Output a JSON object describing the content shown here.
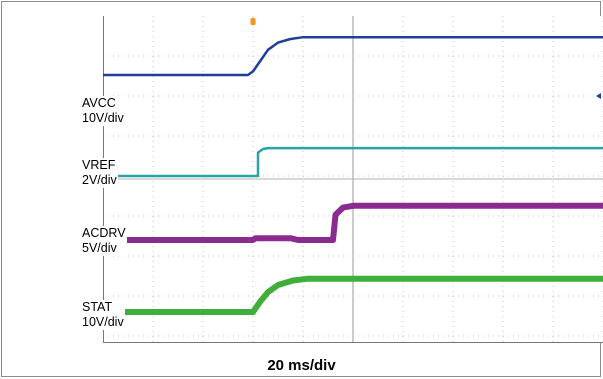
{
  "chart_data": {
    "type": "line",
    "title": "",
    "xlabel": "20 ms/div",
    "ylabel": "",
    "x_unit": "ms",
    "x_per_div": 20,
    "x_divs": 10,
    "y_divs": 8,
    "grid": true,
    "trigger_marker": {
      "time_ms": 60,
      "color": "#f7941d"
    },
    "channels": [
      {
        "name": "AVCC",
        "scale": "10V/div",
        "color": "#1f3f99",
        "thickness": "thin",
        "points_ms_div": [
          [
            0,
            2.0
          ],
          [
            58,
            2.0
          ],
          [
            60,
            2.2
          ],
          [
            63,
            2.8
          ],
          [
            66,
            3.4
          ],
          [
            70,
            3.8
          ],
          [
            75,
            4.0
          ],
          [
            80,
            4.1
          ],
          [
            200,
            4.1
          ]
        ]
      },
      {
        "name": "VREF",
        "scale": "2V/div",
        "color": "#29a3a3",
        "thickness": "thin",
        "points_ms_div": [
          [
            0,
            0.0
          ],
          [
            62,
            0.0
          ],
          [
            62,
            1.3
          ],
          [
            64,
            1.5
          ],
          [
            66,
            1.55
          ],
          [
            200,
            1.55
          ]
        ]
      },
      {
        "name": "ACDRV",
        "scale": "5V/div",
        "color": "#8b2b8f",
        "thickness": "thick",
        "points_ms_div": [
          [
            0,
            0.0
          ],
          [
            60,
            0.0
          ],
          [
            61,
            0.1
          ],
          [
            75,
            0.1
          ],
          [
            78,
            0.0
          ],
          [
            92,
            0.0
          ],
          [
            93,
            1.4
          ],
          [
            96,
            1.8
          ],
          [
            100,
            1.9
          ],
          [
            200,
            1.9
          ]
        ]
      },
      {
        "name": "STAT",
        "scale": "10V/div",
        "color": "#3fae3a",
        "thickness": "thick",
        "points_ms_div": [
          [
            0,
            0.0
          ],
          [
            60,
            0.0
          ],
          [
            63,
            0.6
          ],
          [
            66,
            1.1
          ],
          [
            70,
            1.5
          ],
          [
            76,
            1.75
          ],
          [
            82,
            1.85
          ],
          [
            200,
            1.85
          ]
        ]
      }
    ]
  }
}
